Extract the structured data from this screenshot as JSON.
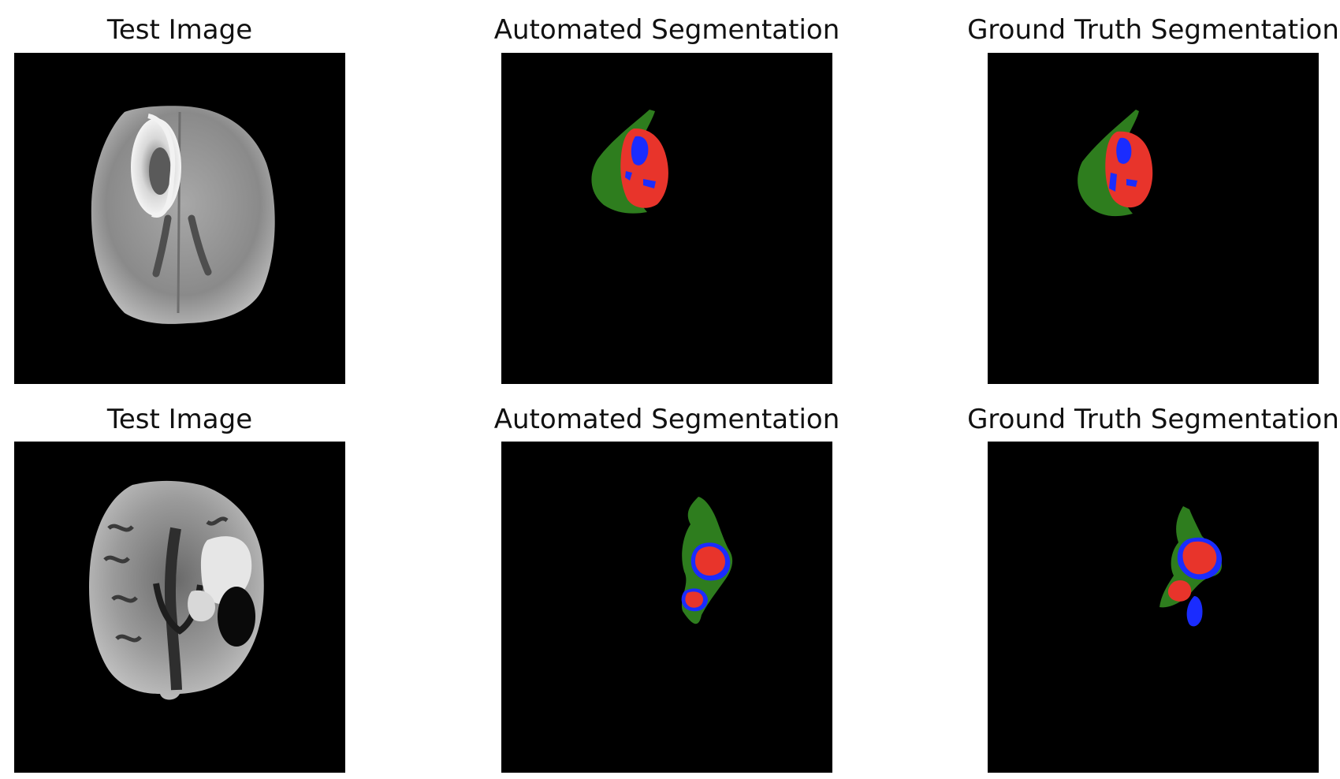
{
  "figure": {
    "rows": [
      {
        "titles": {
          "test": "Test Image",
          "auto": "Automated Segmentation",
          "gt": "Ground Truth Segmentation"
        },
        "test_image_icon": "axial-brain-mri-slice-1",
        "auto_icon": "tumor-mask-predicted-1",
        "gt_icon": "tumor-mask-ground-truth-1"
      },
      {
        "titles": {
          "test": "Test Image",
          "auto": "Automated Segmentation",
          "gt": "Ground Truth Segmentation"
        },
        "test_image_icon": "axial-brain-mri-slice-2",
        "auto_icon": "tumor-mask-predicted-2",
        "gt_icon": "tumor-mask-ground-truth-2"
      }
    ],
    "colors": {
      "background": "#000000",
      "edema": "#2e7d1e",
      "enhancing_tumor": "#e8342b",
      "necrotic_core": "#1a2cff",
      "brain_light": "#b8b8b8",
      "brain_dark": "#5a5a5a"
    }
  }
}
